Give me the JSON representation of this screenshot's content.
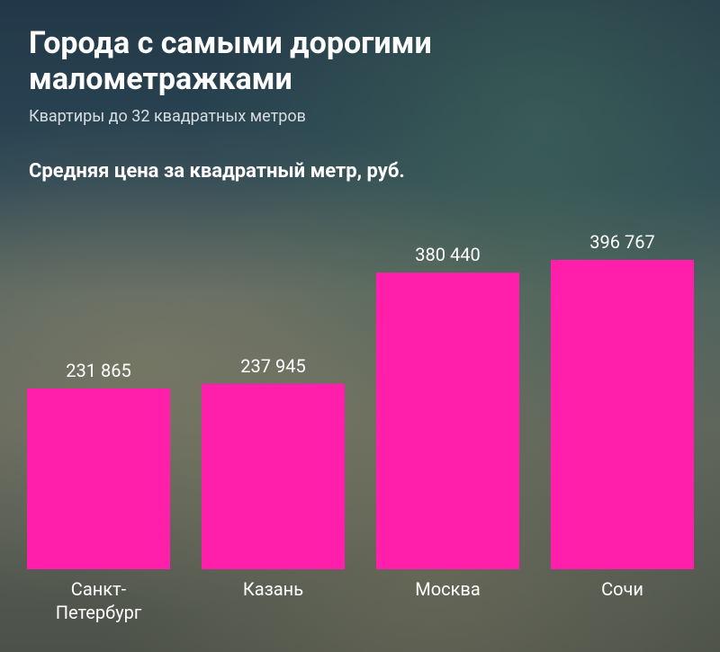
{
  "chart_data": {
    "type": "bar",
    "title": "Города с самыми дорогими малометражками",
    "subtitle": "Квартиры до 32 квадратных метров",
    "value_axis_label": "Средняя цена за квадратный метр, руб.",
    "categories": [
      "Санкт-Петербург",
      "Казань",
      "Москва",
      "Сочи"
    ],
    "values": [
      231865,
      237945,
      380440,
      396767
    ],
    "value_labels": [
      "231 865",
      "237 945",
      "380 440",
      "396 767"
    ],
    "color": "#ff1fab"
  }
}
